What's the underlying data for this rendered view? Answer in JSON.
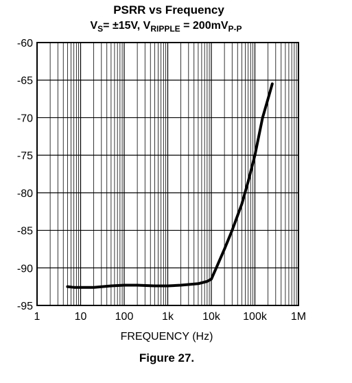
{
  "chart_data": {
    "type": "line",
    "title": "PSRR vs Frequency",
    "subtitle": {
      "vs_main": "V",
      "vs_sub": "S",
      "vs_value": "= ±15V, V",
      "ripple_sub": "RIPPLE",
      "ripple_value": " = 200mV",
      "pp_sub": "P-P"
    },
    "xlabel": "FREQUENCY (Hz)",
    "ylabel": "",
    "x_scale": "log",
    "xlim": [
      1,
      1000000
    ],
    "ylim": [
      -95,
      -60
    ],
    "grid": true,
    "x_ticks": [
      {
        "value": 1,
        "label": "1"
      },
      {
        "value": 10,
        "label": "10"
      },
      {
        "value": 100,
        "label": "100"
      },
      {
        "value": 1000,
        "label": "1k"
      },
      {
        "value": 10000,
        "label": "10k"
      },
      {
        "value": 100000,
        "label": "100k"
      },
      {
        "value": 1000000,
        "label": "1M"
      }
    ],
    "y_ticks": [
      {
        "value": -60,
        "label": "-60"
      },
      {
        "value": -65,
        "label": "-65"
      },
      {
        "value": -70,
        "label": "-70"
      },
      {
        "value": -75,
        "label": "-75"
      },
      {
        "value": -80,
        "label": "-80"
      },
      {
        "value": -85,
        "label": "-85"
      },
      {
        "value": -90,
        "label": "-90"
      },
      {
        "value": -95,
        "label": "-95"
      }
    ],
    "series": [
      {
        "x": [
          5,
          7,
          10,
          20,
          50,
          100,
          200,
          500,
          1000,
          2000,
          5000,
          8000,
          10000,
          13000,
          20000,
          30000,
          50000,
          70000,
          100000,
          150000,
          200000,
          250000
        ],
        "y": [
          -92.5,
          -92.6,
          -92.6,
          -92.6,
          -92.4,
          -92.3,
          -92.3,
          -92.4,
          -92.4,
          -92.3,
          -92.1,
          -91.8,
          -91.5,
          -90.0,
          -87.5,
          -85.0,
          -81.5,
          -78.5,
          -75.0,
          -70.0,
          -67.5,
          -65.5
        ]
      }
    ],
    "colors": {
      "line": "#000000",
      "grid": "#000000"
    }
  },
  "caption": "Figure 27."
}
